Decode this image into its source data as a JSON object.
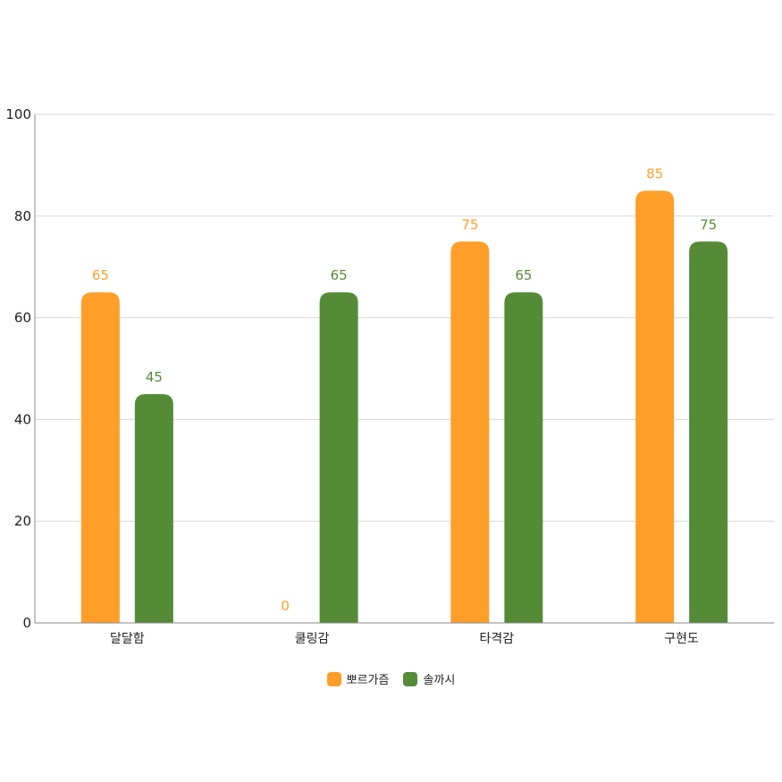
{
  "chart_data": {
    "type": "bar",
    "categories": [
      "달달함",
      "쿨링감",
      "타격감",
      "구현도"
    ],
    "series": [
      {
        "name": "뽀르가즘",
        "color": "#FF9F2A",
        "values": [
          65,
          0,
          75,
          85
        ]
      },
      {
        "name": "솔까시",
        "color": "#558B36",
        "values": [
          45,
          65,
          65,
          75
        ]
      }
    ],
    "ylim": [
      0,
      100
    ],
    "yticks": [
      0,
      20,
      40,
      60,
      80,
      100
    ],
    "grid": true,
    "legend_position": "bottom-center",
    "data_labels": true,
    "title": "",
    "xlabel": "",
    "ylabel": ""
  }
}
